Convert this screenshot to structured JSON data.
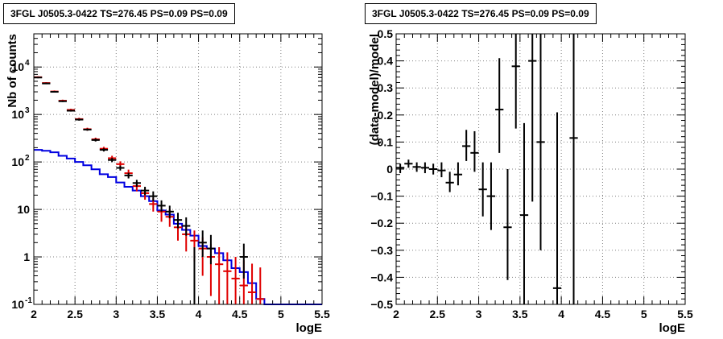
{
  "panels": {
    "left": {
      "title": "3FGL J0505.3-0422 TS=276.45 PS=0.09 PS=0.09"
    },
    "right": {
      "title": "3FGL J0505.3-0422 TS=276.45 PS=0.09 PS=0.09"
    }
  },
  "colors": {
    "data": "#000000",
    "model_points": "#e00000",
    "model_line": "#0000e0",
    "grid": "#808080"
  },
  "chart_data": [
    {
      "type": "line",
      "title": "3FGL J0505.3-0422 TS=276.45 PS=0.09 PS=0.09",
      "xlabel": "logE",
      "ylabel": "Nb of counts",
      "xlim": [
        2,
        5.5
      ],
      "ylim": [
        0.1,
        50000
      ],
      "yscale": "log",
      "grid": true,
      "x_ticks": [
        "2",
        "2.5",
        "3",
        "3.5",
        "4",
        "4.5",
        "5",
        "5.5"
      ],
      "y_ticks": [
        {
          "value": 0.1,
          "base": "10",
          "exp": "-1"
        },
        {
          "value": 1,
          "base": "1",
          "exp": ""
        },
        {
          "value": 10,
          "base": "10",
          "exp": ""
        },
        {
          "value": 100,
          "base": "10",
          "exp": "2"
        },
        {
          "value": 1000,
          "base": "10",
          "exp": "3"
        },
        {
          "value": 10000,
          "base": "10",
          "exp": "4"
        }
      ],
      "series": [
        {
          "role": "data",
          "points": [
            [
              2.05,
              6000
            ],
            [
              2.15,
              4500
            ],
            [
              2.25,
              3000
            ],
            [
              2.35,
              1900
            ],
            [
              2.45,
              1200
            ],
            [
              2.55,
              780
            ],
            [
              2.65,
              480
            ],
            [
              2.75,
              290
            ],
            [
              2.85,
              180
            ],
            [
              2.95,
              110
            ],
            [
              3.05,
              75
            ],
            [
              3.15,
              52
            ],
            [
              3.25,
              36
            ],
            [
              3.35,
              25
            ],
            [
              3.45,
              19
            ],
            [
              3.55,
              12
            ],
            [
              3.65,
              9
            ],
            [
              3.75,
              6
            ],
            [
              3.85,
              4.5
            ],
            [
              4.05,
              2
            ],
            [
              4.15,
              1.5
            ],
            [
              4.55,
              1.0
            ]
          ],
          "err": [
            [
              2.05,
              5800,
              6200
            ],
            [
              2.15,
              4350,
              4650
            ],
            [
              2.25,
              2900,
              3100
            ],
            [
              2.35,
              1830,
              1970
            ],
            [
              2.45,
              1150,
              1250
            ],
            [
              2.55,
              740,
              820
            ],
            [
              2.65,
              455,
              505
            ],
            [
              2.75,
              270,
              310
            ],
            [
              2.85,
              166,
              194
            ],
            [
              2.95,
              99,
              121
            ],
            [
              3.05,
              66,
              84
            ],
            [
              3.15,
              45,
              59
            ],
            [
              3.25,
              30,
              42
            ],
            [
              3.35,
              20,
              30
            ],
            [
              3.45,
              15,
              24
            ],
            [
              3.55,
              9,
              15.5
            ],
            [
              3.65,
              6.5,
              12
            ],
            [
              3.75,
              4,
              8.5
            ],
            [
              3.85,
              2.8,
              6.8
            ],
            [
              3.95,
              0.1,
              1.6
            ],
            [
              4.05,
              1,
              3.6
            ],
            [
              4.15,
              0.7,
              2.9
            ],
            [
              4.55,
              0.35,
              1.9
            ]
          ]
        },
        {
          "role": "model-points",
          "points": [
            [
              2.05,
              6100
            ],
            [
              2.15,
              4600
            ],
            [
              2.25,
              3050
            ],
            [
              2.35,
              1950
            ],
            [
              2.45,
              1250
            ],
            [
              2.55,
              800
            ],
            [
              2.65,
              490
            ],
            [
              2.75,
              300
            ],
            [
              2.85,
              190
            ],
            [
              2.95,
              120
            ],
            [
              3.05,
              90
            ],
            [
              3.15,
              58
            ],
            [
              3.25,
              31
            ],
            [
              3.35,
              22
            ],
            [
              3.45,
              13
            ],
            [
              3.55,
              9
            ],
            [
              3.65,
              7
            ],
            [
              3.75,
              4.2
            ],
            [
              3.85,
              3
            ],
            [
              3.95,
              2.2
            ],
            [
              4.05,
              1.5
            ],
            [
              4.15,
              1.0
            ],
            [
              4.25,
              0.7
            ],
            [
              4.35,
              0.5
            ],
            [
              4.45,
              0.35
            ],
            [
              4.55,
              0.25
            ],
            [
              4.65,
              0.18
            ],
            [
              4.75,
              0.13
            ]
          ],
          "err": [
            [
              2.05,
              5850,
              6350
            ],
            [
              2.15,
              4400,
              4800
            ],
            [
              2.25,
              2900,
              3200
            ],
            [
              2.35,
              1850,
              2050
            ],
            [
              2.45,
              1180,
              1320
            ],
            [
              2.55,
              750,
              850
            ],
            [
              2.65,
              455,
              525
            ],
            [
              2.75,
              275,
              325
            ],
            [
              2.85,
              172,
              208
            ],
            [
              2.95,
              105,
              135
            ],
            [
              3.05,
              77,
              103
            ],
            [
              3.15,
              47,
              69
            ],
            [
              3.25,
              24,
              38
            ],
            [
              3.35,
              16,
              28
            ],
            [
              3.45,
              9,
              17.5
            ],
            [
              3.55,
              5.5,
              12.5
            ],
            [
              3.65,
              4.3,
              10
            ],
            [
              3.75,
              2.2,
              6.2
            ],
            [
              3.85,
              1.3,
              4.7
            ],
            [
              3.95,
              0.8,
              3.6
            ],
            [
              4.05,
              0.4,
              2.6
            ],
            [
              4.15,
              0.15,
              1.85
            ],
            [
              4.25,
              0.1,
              1.6
            ],
            [
              4.35,
              0.1,
              1.25
            ],
            [
              4.45,
              0.1,
              1.0
            ],
            [
              4.55,
              0.1,
              0.85
            ],
            [
              4.65,
              0.1,
              0.72
            ],
            [
              4.75,
              0.1,
              0.6
            ]
          ]
        },
        {
          "role": "model-line",
          "steps": [
            [
              2.0,
              180
            ],
            [
              2.1,
              172
            ],
            [
              2.2,
              160
            ],
            [
              2.3,
              135
            ],
            [
              2.4,
              118
            ],
            [
              2.5,
              100
            ],
            [
              2.6,
              85
            ],
            [
              2.7,
              70
            ],
            [
              2.8,
              55
            ],
            [
              2.9,
              48
            ],
            [
              3.0,
              37
            ],
            [
              3.1,
              30
            ],
            [
              3.2,
              25
            ],
            [
              3.3,
              19
            ],
            [
              3.4,
              15
            ],
            [
              3.5,
              9.5
            ],
            [
              3.6,
              7.8
            ],
            [
              3.7,
              5
            ],
            [
              3.8,
              3.7
            ],
            [
              3.9,
              2.8
            ],
            [
              4.0,
              1.7
            ],
            [
              4.1,
              1.5
            ],
            [
              4.2,
              1.2
            ],
            [
              4.3,
              0.85
            ],
            [
              4.4,
              0.58
            ],
            [
              4.5,
              0.48
            ],
            [
              4.6,
              0.28
            ],
            [
              4.7,
              0.13
            ],
            [
              4.8,
              0.1
            ],
            [
              4.9,
              0.1
            ],
            [
              5.0,
              0.1
            ],
            [
              5.1,
              0.1
            ],
            [
              5.2,
              0.1
            ],
            [
              5.3,
              0.1
            ],
            [
              5.4,
              0.1
            ]
          ]
        }
      ]
    },
    {
      "type": "scatter",
      "title": "3FGL J0505.3-0422 TS=276.45 PS=0.09 PS=0.09",
      "xlabel": "logE",
      "ylabel": "(data-model)/model",
      "xlim": [
        2,
        5.5
      ],
      "ylim": [
        -0.5,
        0.5
      ],
      "grid": true,
      "x_ticks": [
        "2",
        "2.5",
        "3",
        "3.5",
        "4",
        "4.5",
        "5",
        "5.5"
      ],
      "y_ticks": [
        "0.5",
        "0.4",
        "0.3",
        "0.2",
        "0.1",
        "0",
        "−0.1",
        "−0.2",
        "−0.3",
        "−0.4",
        "−0.5"
      ],
      "points": [
        [
          2.05,
          0.005,
          -0.015,
          0.02
        ],
        [
          2.15,
          0.02,
          0.005,
          0.035
        ],
        [
          2.25,
          0.008,
          -0.01,
          0.025
        ],
        [
          2.35,
          0.005,
          -0.015,
          0.025
        ],
        [
          2.45,
          0.0,
          -0.02,
          0.02
        ],
        [
          2.55,
          -0.005,
          -0.03,
          0.025
        ],
        [
          2.65,
          -0.05,
          -0.085,
          -0.01
        ],
        [
          2.75,
          -0.02,
          -0.06,
          0.025
        ],
        [
          2.85,
          0.085,
          0.03,
          0.145
        ],
        [
          2.95,
          0.06,
          -0.01,
          0.14
        ],
        [
          3.05,
          -0.075,
          -0.175,
          0.025
        ],
        [
          3.15,
          -0.1,
          -0.225,
          0.025
        ],
        [
          3.25,
          0.22,
          0.06,
          0.41
        ],
        [
          3.35,
          -0.215,
          -0.41,
          0.0
        ],
        [
          3.45,
          0.38,
          0.15,
          0.5
        ],
        [
          3.55,
          -0.17,
          -0.5,
          0.17
        ],
        [
          3.65,
          0.4,
          -0.12,
          0.5
        ],
        [
          3.75,
          0.1,
          -0.3,
          0.5
        ],
        [
          3.95,
          -0.44,
          -0.5,
          0.21
        ],
        [
          4.15,
          0.115,
          -0.5,
          0.5
        ]
      ]
    }
  ]
}
